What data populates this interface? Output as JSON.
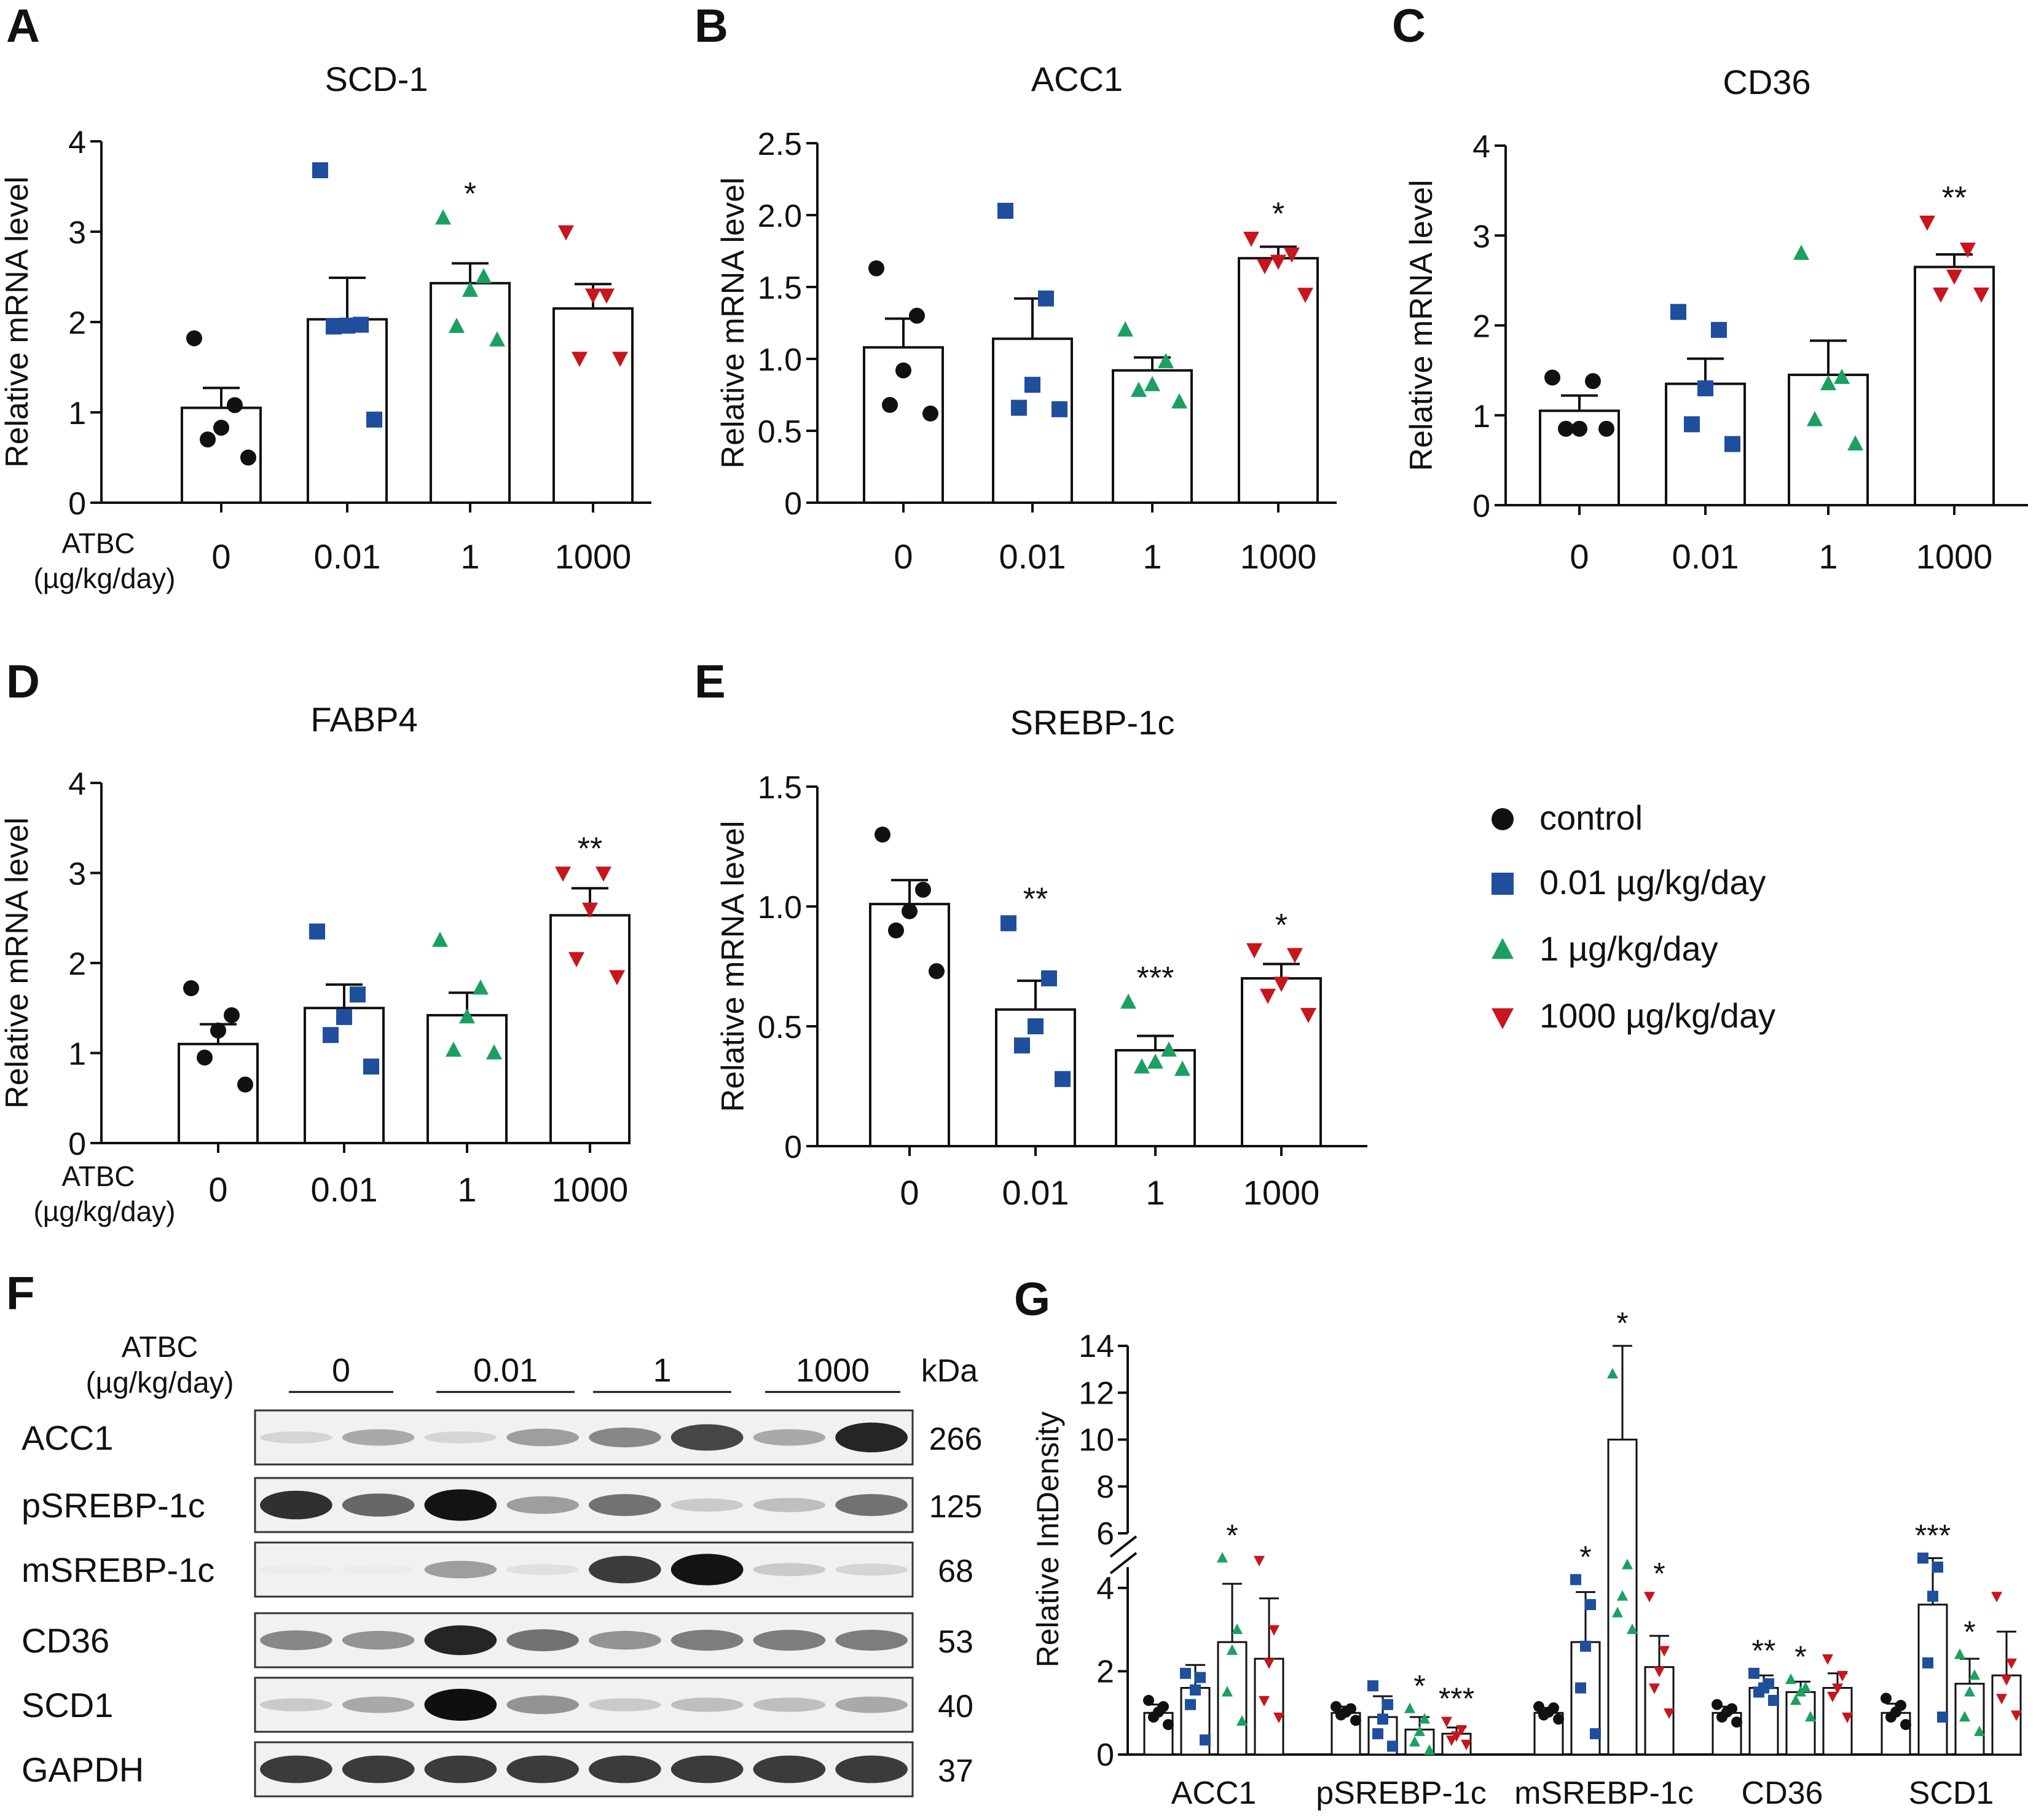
{
  "treatment_label": [
    "ATBC",
    "(µg/kg/day)"
  ],
  "doses": [
    "0",
    "0.01",
    "1",
    "1000"
  ],
  "colors": {
    "control": "#111111",
    "low": "#1f4e9c",
    "mid": "#1aa060",
    "high": "#c8151e"
  },
  "legend": [
    {
      "label": "control",
      "marker": "circle",
      "color": "#111111"
    },
    {
      "label": "0.01 µg/kg/day",
      "marker": "square",
      "color": "#1f4e9c"
    },
    {
      "label": "1 µg/kg/day",
      "marker": "triangle-up",
      "color": "#1aa060"
    },
    {
      "label": "1000  µg/kg/day",
      "marker": "triangle-down",
      "color": "#c8151e"
    }
  ],
  "chart_data": [
    {
      "panel": "A",
      "type": "bar",
      "title": "SCD-1",
      "ylabel": "Relative mRNA level",
      "ylim": [
        0,
        4
      ],
      "yticks": [
        "0",
        "1",
        "2",
        "3",
        "4"
      ],
      "categories": [
        "0",
        "0.01",
        "1",
        "1000"
      ],
      "values": [
        1.05,
        2.03,
        2.43,
        2.15
      ],
      "sem": [
        0.22,
        0.46,
        0.22,
        0.27
      ],
      "points": [
        [
          0.5,
          0.7,
          0.83,
          1.08,
          1.82
        ],
        [
          0.92,
          1.95,
          1.96,
          1.97,
          3.68
        ],
        [
          1.8,
          1.95,
          2.35,
          2.5,
          3.15
        ],
        [
          1.6,
          1.6,
          2.3,
          2.3,
          3.0
        ]
      ],
      "significance": [
        "",
        "",
        "*",
        ""
      ]
    },
    {
      "panel": "B",
      "type": "bar",
      "title": "ACC1",
      "ylabel": "Relative mRNA level",
      "ylim": [
        0,
        2.5
      ],
      "yticks": [
        "0",
        "0.5",
        "1.0",
        "1.5",
        "2.0",
        "2.5"
      ],
      "categories": [
        "0",
        "0.01",
        "1",
        "1000"
      ],
      "values": [
        1.08,
        1.14,
        0.92,
        1.7
      ],
      "sem": [
        0.2,
        0.28,
        0.09,
        0.08
      ],
      "points": [
        [
          0.62,
          0.68,
          0.92,
          1.3,
          1.63
        ],
        [
          0.65,
          0.66,
          0.82,
          1.42,
          2.03
        ],
        [
          0.7,
          0.78,
          0.82,
          0.98,
          1.2
        ],
        [
          1.45,
          1.65,
          1.68,
          1.73,
          1.84
        ]
      ],
      "significance": [
        "",
        "",
        "",
        "*"
      ]
    },
    {
      "panel": "C",
      "type": "bar",
      "title": "CD36",
      "ylabel": "Relative mRNA level",
      "ylim": [
        0,
        4
      ],
      "yticks": [
        "0",
        "1",
        "2",
        "3",
        "4"
      ],
      "categories": [
        "0",
        "0.01",
        "1",
        "1000"
      ],
      "values": [
        1.05,
        1.35,
        1.45,
        2.65
      ],
      "sem": [
        0.17,
        0.28,
        0.38,
        0.14
      ],
      "points": [
        [
          0.85,
          0.85,
          0.85,
          1.38,
          1.42
        ],
        [
          0.68,
          0.9,
          1.3,
          1.95,
          2.15
        ],
        [
          0.68,
          0.95,
          1.35,
          1.42,
          2.8
        ],
        [
          2.35,
          2.35,
          2.55,
          2.85,
          3.15
        ]
      ],
      "significance": [
        "",
        "",
        "",
        "**"
      ]
    },
    {
      "panel": "D",
      "type": "bar",
      "title": "FABP4",
      "ylabel": "Relative mRNA level",
      "ylim": [
        0,
        4
      ],
      "yticks": [
        "0",
        "1",
        "2",
        "3",
        "4"
      ],
      "categories": [
        "0",
        "0.01",
        "1",
        "1000"
      ],
      "values": [
        1.1,
        1.5,
        1.42,
        2.53
      ],
      "sem": [
        0.22,
        0.26,
        0.25,
        0.3
      ],
      "points": [
        [
          0.65,
          0.95,
          1.25,
          1.42,
          1.72
        ],
        [
          0.85,
          1.2,
          1.4,
          1.65,
          2.35
        ],
        [
          1.0,
          1.03,
          1.4,
          1.72,
          2.25
        ],
        [
          1.85,
          2.05,
          2.6,
          3.0,
          3.0
        ]
      ],
      "significance": [
        "",
        "",
        "",
        "**"
      ]
    },
    {
      "panel": "E",
      "type": "bar",
      "title": "SREBP-1c",
      "ylabel": "Relative mRNA level",
      "ylim": [
        0,
        1.5
      ],
      "yticks": [
        "0",
        "0.5",
        "1.0",
        "1.5"
      ],
      "categories": [
        "0",
        "0.01",
        "1",
        "1000"
      ],
      "values": [
        1.01,
        0.57,
        0.4,
        0.7
      ],
      "sem": [
        0.1,
        0.12,
        0.06,
        0.06
      ],
      "points": [
        [
          0.73,
          0.9,
          0.98,
          1.07,
          1.3
        ],
        [
          0.28,
          0.42,
          0.5,
          0.7,
          0.93
        ],
        [
          0.32,
          0.33,
          0.35,
          0.4,
          0.6
        ],
        [
          0.55,
          0.63,
          0.68,
          0.8,
          0.82
        ]
      ],
      "significance": [
        "",
        "**",
        "***",
        "*"
      ]
    },
    {
      "panel": "G",
      "type": "bar",
      "title": "",
      "ylabel": "Relative IntDensity",
      "yticks": [
        "0",
        "2",
        "4",
        "6",
        "8",
        "10",
        "12",
        "14"
      ],
      "axis_break": [
        4.5,
        6
      ],
      "categories": [
        "ACC1",
        "pSREBP-1c",
        "mSREBP-1c",
        "CD36",
        "SCD1"
      ],
      "series": [
        {
          "values": [
            1.0,
            1.0,
            1.0,
            1.0,
            1.0
          ],
          "sem": [
            0.2,
            0.15,
            0.12,
            0.15,
            0.22
          ],
          "points": [
            [
              0.72,
              0.9,
              1.02,
              1.15,
              1.3
            ],
            [
              0.82,
              0.95,
              1.02,
              1.1,
              1.15
            ],
            [
              0.85,
              0.95,
              1.02,
              1.12,
              1.15
            ],
            [
              0.78,
              0.9,
              1.02,
              1.1,
              1.2
            ],
            [
              0.72,
              0.9,
              1.02,
              1.18,
              1.35
            ]
          ],
          "significance": [
            "",
            "",
            "",
            "",
            ""
          ]
        },
        {
          "values": [
            1.6,
            0.9,
            2.7,
            1.6,
            3.6
          ],
          "sem": [
            0.55,
            0.5,
            1.2,
            0.3,
            1.3
          ],
          "points": [
            [
              0.35,
              1.2,
              1.55,
              1.85,
              1.95
            ],
            [
              0.2,
              0.5,
              0.85,
              1.2,
              1.65
            ],
            [
              0.5,
              1.6,
              2.6,
              3.6,
              4.2
            ],
            [
              1.3,
              1.5,
              1.6,
              1.7,
              1.95
            ],
            [
              0.9,
              2.2,
              3.8,
              4.5,
              4.9
            ]
          ],
          "significance": [
            "",
            "",
            "*",
            "**",
            "***"
          ]
        },
        {
          "values": [
            2.7,
            0.6,
            10,
            1.5,
            1.7
          ],
          "sem": [
            1.4,
            0.3,
            4.0,
            0.25,
            0.6
          ],
          "points": [
            [
              0.8,
              1.5,
              2.5,
              3.0,
              4.9
            ],
            [
              0.1,
              0.3,
              0.55,
              0.85,
              1.1
            ],
            [
              3.0,
              3.4,
              3.8,
              4.6,
              12.8
            ],
            [
              0.9,
              1.3,
              1.5,
              1.6,
              1.8
            ],
            [
              0.55,
              0.9,
              1.5,
              1.9,
              2.4
            ]
          ],
          "significance": [
            "*",
            "*",
            "*",
            "*",
            "*"
          ]
        },
        {
          "values": [
            2.3,
            0.5,
            2.1,
            1.6,
            1.9
          ],
          "sem": [
            1.45,
            0.15,
            0.75,
            0.35,
            1.05
          ],
          "points": [
            [
              0.9,
              1.3,
              2.2,
              3.0,
              4.8
            ],
            [
              0.25,
              0.35,
              0.45,
              0.6,
              0.8
            ],
            [
              1.0,
              1.6,
              2.0,
              2.5,
              3.8
            ],
            [
              0.9,
              1.4,
              1.6,
              1.9,
              2.3
            ],
            [
              0.95,
              1.35,
              1.8,
              2.2,
              3.8
            ]
          ],
          "significance": [
            "",
            "***",
            "*",
            "",
            ""
          ]
        }
      ]
    }
  ],
  "western_blot": {
    "panel": "F",
    "treatment_label": [
      "ATBC",
      "(µg/kg/day)"
    ],
    "groups": [
      "0",
      "0.01",
      "1",
      "1000"
    ],
    "kda_header": "kDa",
    "rows": [
      {
        "protein": "ACC1",
        "kda": "266",
        "intensity": [
          0.1,
          0.3,
          0.1,
          0.35,
          0.45,
          0.75,
          0.3,
          0.9
        ]
      },
      {
        "protein": "pSREBP-1c",
        "kda": "125",
        "intensity": [
          0.85,
          0.6,
          0.98,
          0.35,
          0.55,
          0.15,
          0.2,
          0.55
        ]
      },
      {
        "protein": "mSREBP-1c",
        "kda": "68",
        "intensity": [
          0.0,
          0.0,
          0.35,
          0.05,
          0.8,
          0.98,
          0.15,
          0.1
        ]
      },
      {
        "protein": "CD36",
        "kda": "53",
        "intensity": [
          0.45,
          0.4,
          0.9,
          0.55,
          0.4,
          0.5,
          0.5,
          0.5
        ]
      },
      {
        "protein": "SCD1",
        "kda": "40",
        "intensity": [
          0.15,
          0.3,
          1.0,
          0.4,
          0.15,
          0.2,
          0.2,
          0.3
        ]
      },
      {
        "protein": "GAPDH",
        "kda": "37",
        "intensity": [
          0.8,
          0.8,
          0.8,
          0.8,
          0.8,
          0.8,
          0.8,
          0.8
        ]
      }
    ]
  },
  "panel_letters": [
    "A",
    "B",
    "C",
    "D",
    "E",
    "F",
    "G"
  ]
}
